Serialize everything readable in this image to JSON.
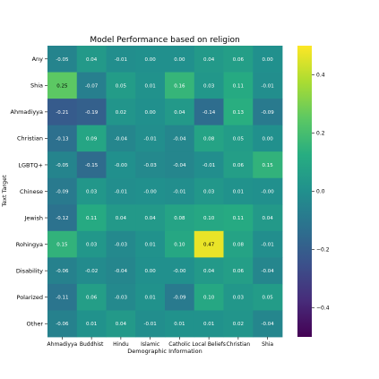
{
  "chart_data": {
    "type": "heatmap",
    "title": "Model Performance based on religion",
    "xlabel": "Demographic Information",
    "ylabel": "Text Target",
    "x_categories": [
      "Ahmadiyya",
      "Buddhist",
      "Hindu",
      "Islamic",
      "Catholic",
      "Local Beliefs",
      "Christian",
      "Shia"
    ],
    "y_categories": [
      "Any",
      "Shia",
      "Ahmadiyya",
      "Christian",
      "LGBTQ+",
      "Chinese",
      "Jewish",
      "Rohingya",
      "Disability",
      "Polarized",
      "Other"
    ],
    "values": [
      [
        -0.05,
        0.04,
        -0.01,
        0.0,
        0.0,
        0.04,
        0.06,
        0.0
      ],
      [
        0.25,
        -0.07,
        0.05,
        0.01,
        0.16,
        0.03,
        0.11,
        -0.01
      ],
      [
        -0.21,
        -0.19,
        0.02,
        0.0,
        0.04,
        -0.14,
        0.13,
        -0.09
      ],
      [
        -0.13,
        0.09,
        -0.04,
        -0.01,
        -0.04,
        0.08,
        0.05,
        0.0
      ],
      [
        -0.05,
        -0.15,
        -0.0,
        -0.03,
        -0.04,
        -0.01,
        0.06,
        0.15
      ],
      [
        -0.09,
        0.03,
        -0.01,
        -0.0,
        -0.01,
        0.03,
        0.01,
        -0.0
      ],
      [
        -0.12,
        0.11,
        0.04,
        0.04,
        0.08,
        0.1,
        0.11,
        0.04
      ],
      [
        0.15,
        0.03,
        -0.03,
        0.01,
        0.1,
        0.47,
        0.08,
        -0.01
      ],
      [
        -0.06,
        -0.02,
        -0.04,
        0.0,
        -0.0,
        0.04,
        0.06,
        -0.04
      ],
      [
        -0.11,
        0.06,
        -0.03,
        0.01,
        -0.09,
        0.1,
        0.03,
        0.05
      ],
      [
        -0.06,
        0.01,
        0.04,
        -0.01,
        0.01,
        0.01,
        0.02,
        -0.04
      ]
    ],
    "value_labels": [
      [
        "-0.05",
        "0.04",
        "-0.01",
        "0.00",
        "0.00",
        "0.04",
        "0.06",
        "0.00"
      ],
      [
        "0.25",
        "-0.07",
        "0.05",
        "0.01",
        "0.16",
        "0.03",
        "0.11",
        "-0.01"
      ],
      [
        "-0.21",
        "-0.19",
        "0.02",
        "0.00",
        "0.04",
        "-0.14",
        "0.13",
        "-0.09"
      ],
      [
        "-0.13",
        "0.09",
        "-0.04",
        "-0.01",
        "-0.04",
        "0.08",
        "0.05",
        "0.00"
      ],
      [
        "-0.05",
        "-0.15",
        "-0.00",
        "-0.03",
        "-0.04",
        "-0.01",
        "0.06",
        "0.15"
      ],
      [
        "-0.09",
        "0.03",
        "-0.01",
        "-0.00",
        "-0.01",
        "0.03",
        "0.01",
        "-0.00"
      ],
      [
        "-0.12",
        "0.11",
        "0.04",
        "0.04",
        "0.08",
        "0.10",
        "0.11",
        "0.04"
      ],
      [
        "0.15",
        "0.03",
        "-0.03",
        "0.01",
        "0.10",
        "0.47",
        "0.08",
        "-0.01"
      ],
      [
        "-0.06",
        "-0.02",
        "-0.04",
        "0.00",
        "-0.00",
        "0.04",
        "0.06",
        "-0.04"
      ],
      [
        "-0.11",
        "0.06",
        "-0.03",
        "0.01",
        "-0.09",
        "0.10",
        "0.03",
        "0.05"
      ],
      [
        "-0.06",
        "0.01",
        "0.04",
        "-0.01",
        "0.01",
        "0.01",
        "0.02",
        "-0.04"
      ]
    ],
    "colormap": "viridis",
    "vmin": -0.5,
    "vmax": 0.5,
    "colorbar_ticks": [
      0.4,
      0.2,
      0.0,
      -0.2,
      -0.4
    ],
    "colorbar_tick_labels": [
      "0.4",
      "0.2",
      "0.0",
      "−0.2",
      "−0.4"
    ],
    "grid": false
  }
}
